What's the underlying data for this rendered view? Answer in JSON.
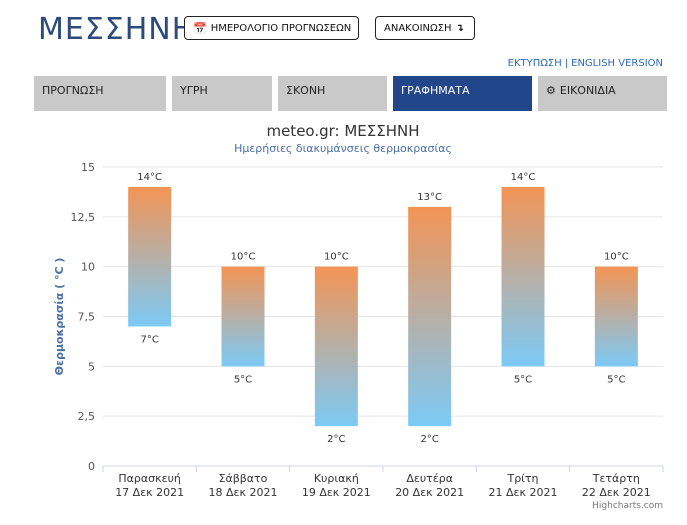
{
  "header": {
    "city": "ΜΕΣΣΗΝΗ",
    "calendar_button": "ΗΜΕΡΟΛΟΓΙΟ ΠΡΟΓΝΩΣΕΩΝ",
    "calendar_icon": "calendar-icon",
    "announce_button": "ΑΝΑΚΟΙΝΩΣΗ",
    "announce_icon": "arrow-down-icon",
    "print_link": "ΕΚΤΥΠΩΣΗ",
    "separator": "|",
    "english_link": "ENGLISH VERSION"
  },
  "tabs": [
    {
      "label": "ΠΡΟΓΝΩΣΗ",
      "active": false
    },
    {
      "label": "ΥΓΡΗ",
      "active": false
    },
    {
      "label": "ΣΚΟΝΗ",
      "active": false
    },
    {
      "label": "ΓΡΑΦΗΜΑΤΑ",
      "active": true
    },
    {
      "label": "ΕΙΚΟΝΙΔΙΑ",
      "active": false,
      "icon": "gear-icon"
    }
  ],
  "chart_data": {
    "type": "bar",
    "subtype": "columnrange",
    "title": "meteo.gr: ΜΕΣΣΗΝΗ",
    "subtitle": "Ημερήσιες διακυμάνσεις θερμοκρασίας",
    "ylabel": "Θερμοκρασία ( °C )",
    "xlabel": "",
    "ylim": [
      0,
      15
    ],
    "yticks": [
      "0",
      "2,5",
      "5",
      "7,5",
      "10",
      "12,5",
      "15"
    ],
    "grid": true,
    "categories": [
      [
        "Παρασκευή",
        "17 Δεκ 2021"
      ],
      [
        "Σάββατο",
        "18 Δεκ 2021"
      ],
      [
        "Κυριακή",
        "19 Δεκ 2021"
      ],
      [
        "Δευτέρα",
        "20 Δεκ 2021"
      ],
      [
        "Τρίτη",
        "21 Δεκ 2021"
      ],
      [
        "Τετάρτη",
        "22 Δεκ 2021"
      ]
    ],
    "low": [
      7,
      5,
      2,
      2,
      5,
      5
    ],
    "high": [
      14,
      10,
      10,
      13,
      14,
      10
    ],
    "low_labels": [
      "7°C",
      "5°C",
      "2°C",
      "2°C",
      "5°C",
      "5°C"
    ],
    "high_labels": [
      "14°C",
      "10°C",
      "10°C",
      "13°C",
      "14°C",
      "10°C"
    ],
    "colors": {
      "top": "#f39455",
      "bottom": "#7ccaf7",
      "grid": "#e6e6e6",
      "axis_title": "#4a6fa5"
    }
  },
  "credit": "Highcharts.com"
}
